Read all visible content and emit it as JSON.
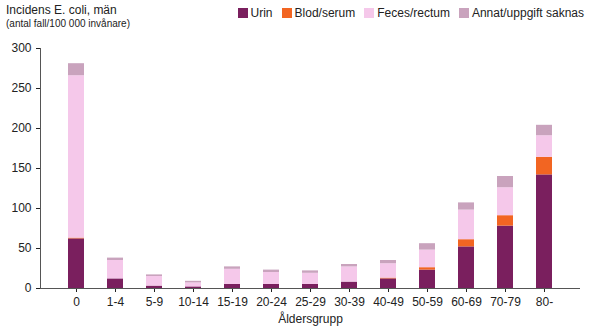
{
  "chart_data": {
    "type": "bar",
    "title": "Incidens E. coli, män",
    "subtitle": "(antal fall/100 000 invånare)",
    "x_label": "Åldersgrupp",
    "categories": [
      "0",
      "1-4",
      "5-9",
      "10-14",
      "15-19",
      "20-24",
      "25-29",
      "30-39",
      "40-49",
      "50-59",
      "60-69",
      "70-79",
      "80-"
    ],
    "series": [
      {
        "name": "Urin",
        "color": "#7a1f5e",
        "values": [
          62,
          12,
          3,
          2,
          5,
          5,
          5,
          8,
          12,
          23,
          52,
          78,
          142
        ]
      },
      {
        "name": "Blod/serum",
        "color": "#f26522",
        "values": [
          1,
          0,
          0,
          0,
          0,
          0,
          0,
          0,
          1,
          3,
          9,
          13,
          22
        ]
      },
      {
        "name": "Feces/rectum",
        "color": "#f5c8ea",
        "values": [
          203,
          23,
          12,
          5,
          19,
          15,
          14,
          19,
          18,
          22,
          37,
          35,
          27
        ]
      },
      {
        "name": "Annat/uppgift saknas",
        "color": "#c9a3bd",
        "values": [
          15,
          3,
          2,
          2,
          3,
          3,
          3,
          3,
          4,
          8,
          9,
          14,
          13
        ]
      }
    ],
    "stacked": true,
    "ylim": [
      0,
      300
    ],
    "yticks": [
      0,
      50,
      100,
      150,
      200,
      250,
      300
    ],
    "grid": false
  }
}
